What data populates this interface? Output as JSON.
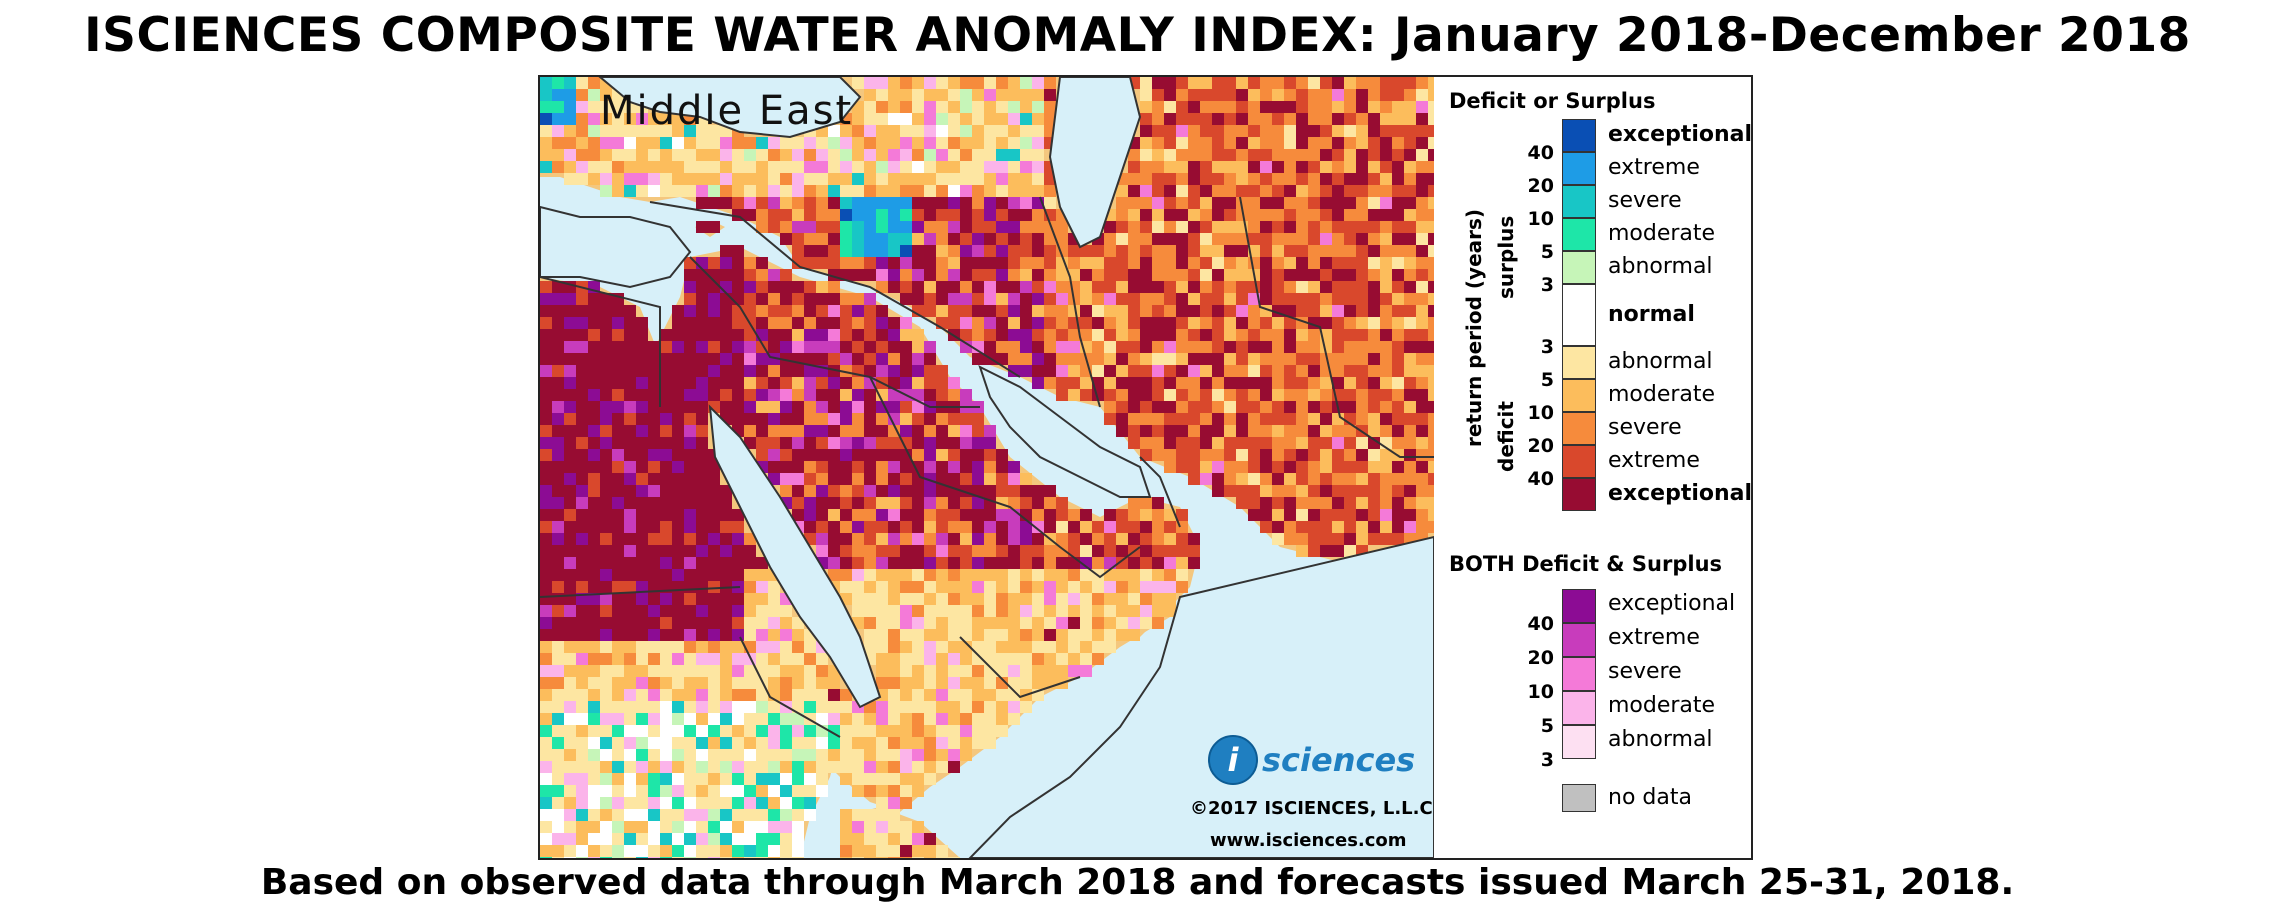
{
  "title": "ISCIENCES COMPOSITE WATER ANOMALY INDEX: January 2018-December 2018",
  "subtitle": "Based on observed data through March 2018 and forecasts issued March 25-31, 2018.",
  "map": {
    "region_label": "Middle East",
    "copyright": "©2017 ISCIENCES, L.L.C.",
    "website": "www.isciences.com",
    "logo_letter": "i",
    "logo_text": "sciences"
  },
  "legend": {
    "deficit_surplus_title": "Deficit or Surplus",
    "both_title": "BOTH Deficit & Surplus",
    "axis_label": "return period (years)",
    "surplus_label": "surplus",
    "deficit_label": "deficit",
    "surplus_classes": [
      {
        "label": "exceptional",
        "color": "#0a4fb4",
        "bold": true
      },
      {
        "label": "extreme",
        "color": "#1e9ce6",
        "bold": false
      },
      {
        "label": "severe",
        "color": "#18c6c6",
        "bold": false
      },
      {
        "label": "moderate",
        "color": "#1ee6a8",
        "bold": false
      },
      {
        "label": "abnormal",
        "color": "#c6f5b8",
        "bold": false
      }
    ],
    "surplus_ticks": [
      "40",
      "20",
      "10",
      "5",
      "3"
    ],
    "normal": {
      "label": "normal",
      "color": "#ffffff"
    },
    "deficit_classes": [
      {
        "label": "abnormal",
        "color": "#fde6a2",
        "bold": false
      },
      {
        "label": "moderate",
        "color": "#fcbd5c",
        "bold": false
      },
      {
        "label": "severe",
        "color": "#f68b3c",
        "bold": false
      },
      {
        "label": "extreme",
        "color": "#d9482c",
        "bold": false
      },
      {
        "label": "exceptional",
        "color": "#970c32",
        "bold": true
      }
    ],
    "deficit_ticks": [
      "3",
      "5",
      "10",
      "20",
      "40"
    ],
    "both_classes": [
      {
        "label": "exceptional",
        "color": "#8c0c94"
      },
      {
        "label": "extreme",
        "color": "#c83cbc"
      },
      {
        "label": "severe",
        "color": "#f47ad8"
      },
      {
        "label": "moderate",
        "color": "#fbb4ea"
      },
      {
        "label": "abnormal",
        "color": "#fde0f2"
      }
    ],
    "both_ticks": [
      "40",
      "20",
      "10",
      "5",
      "3"
    ],
    "no_data": {
      "label": "no data",
      "color": "#c0c0c0"
    }
  }
}
